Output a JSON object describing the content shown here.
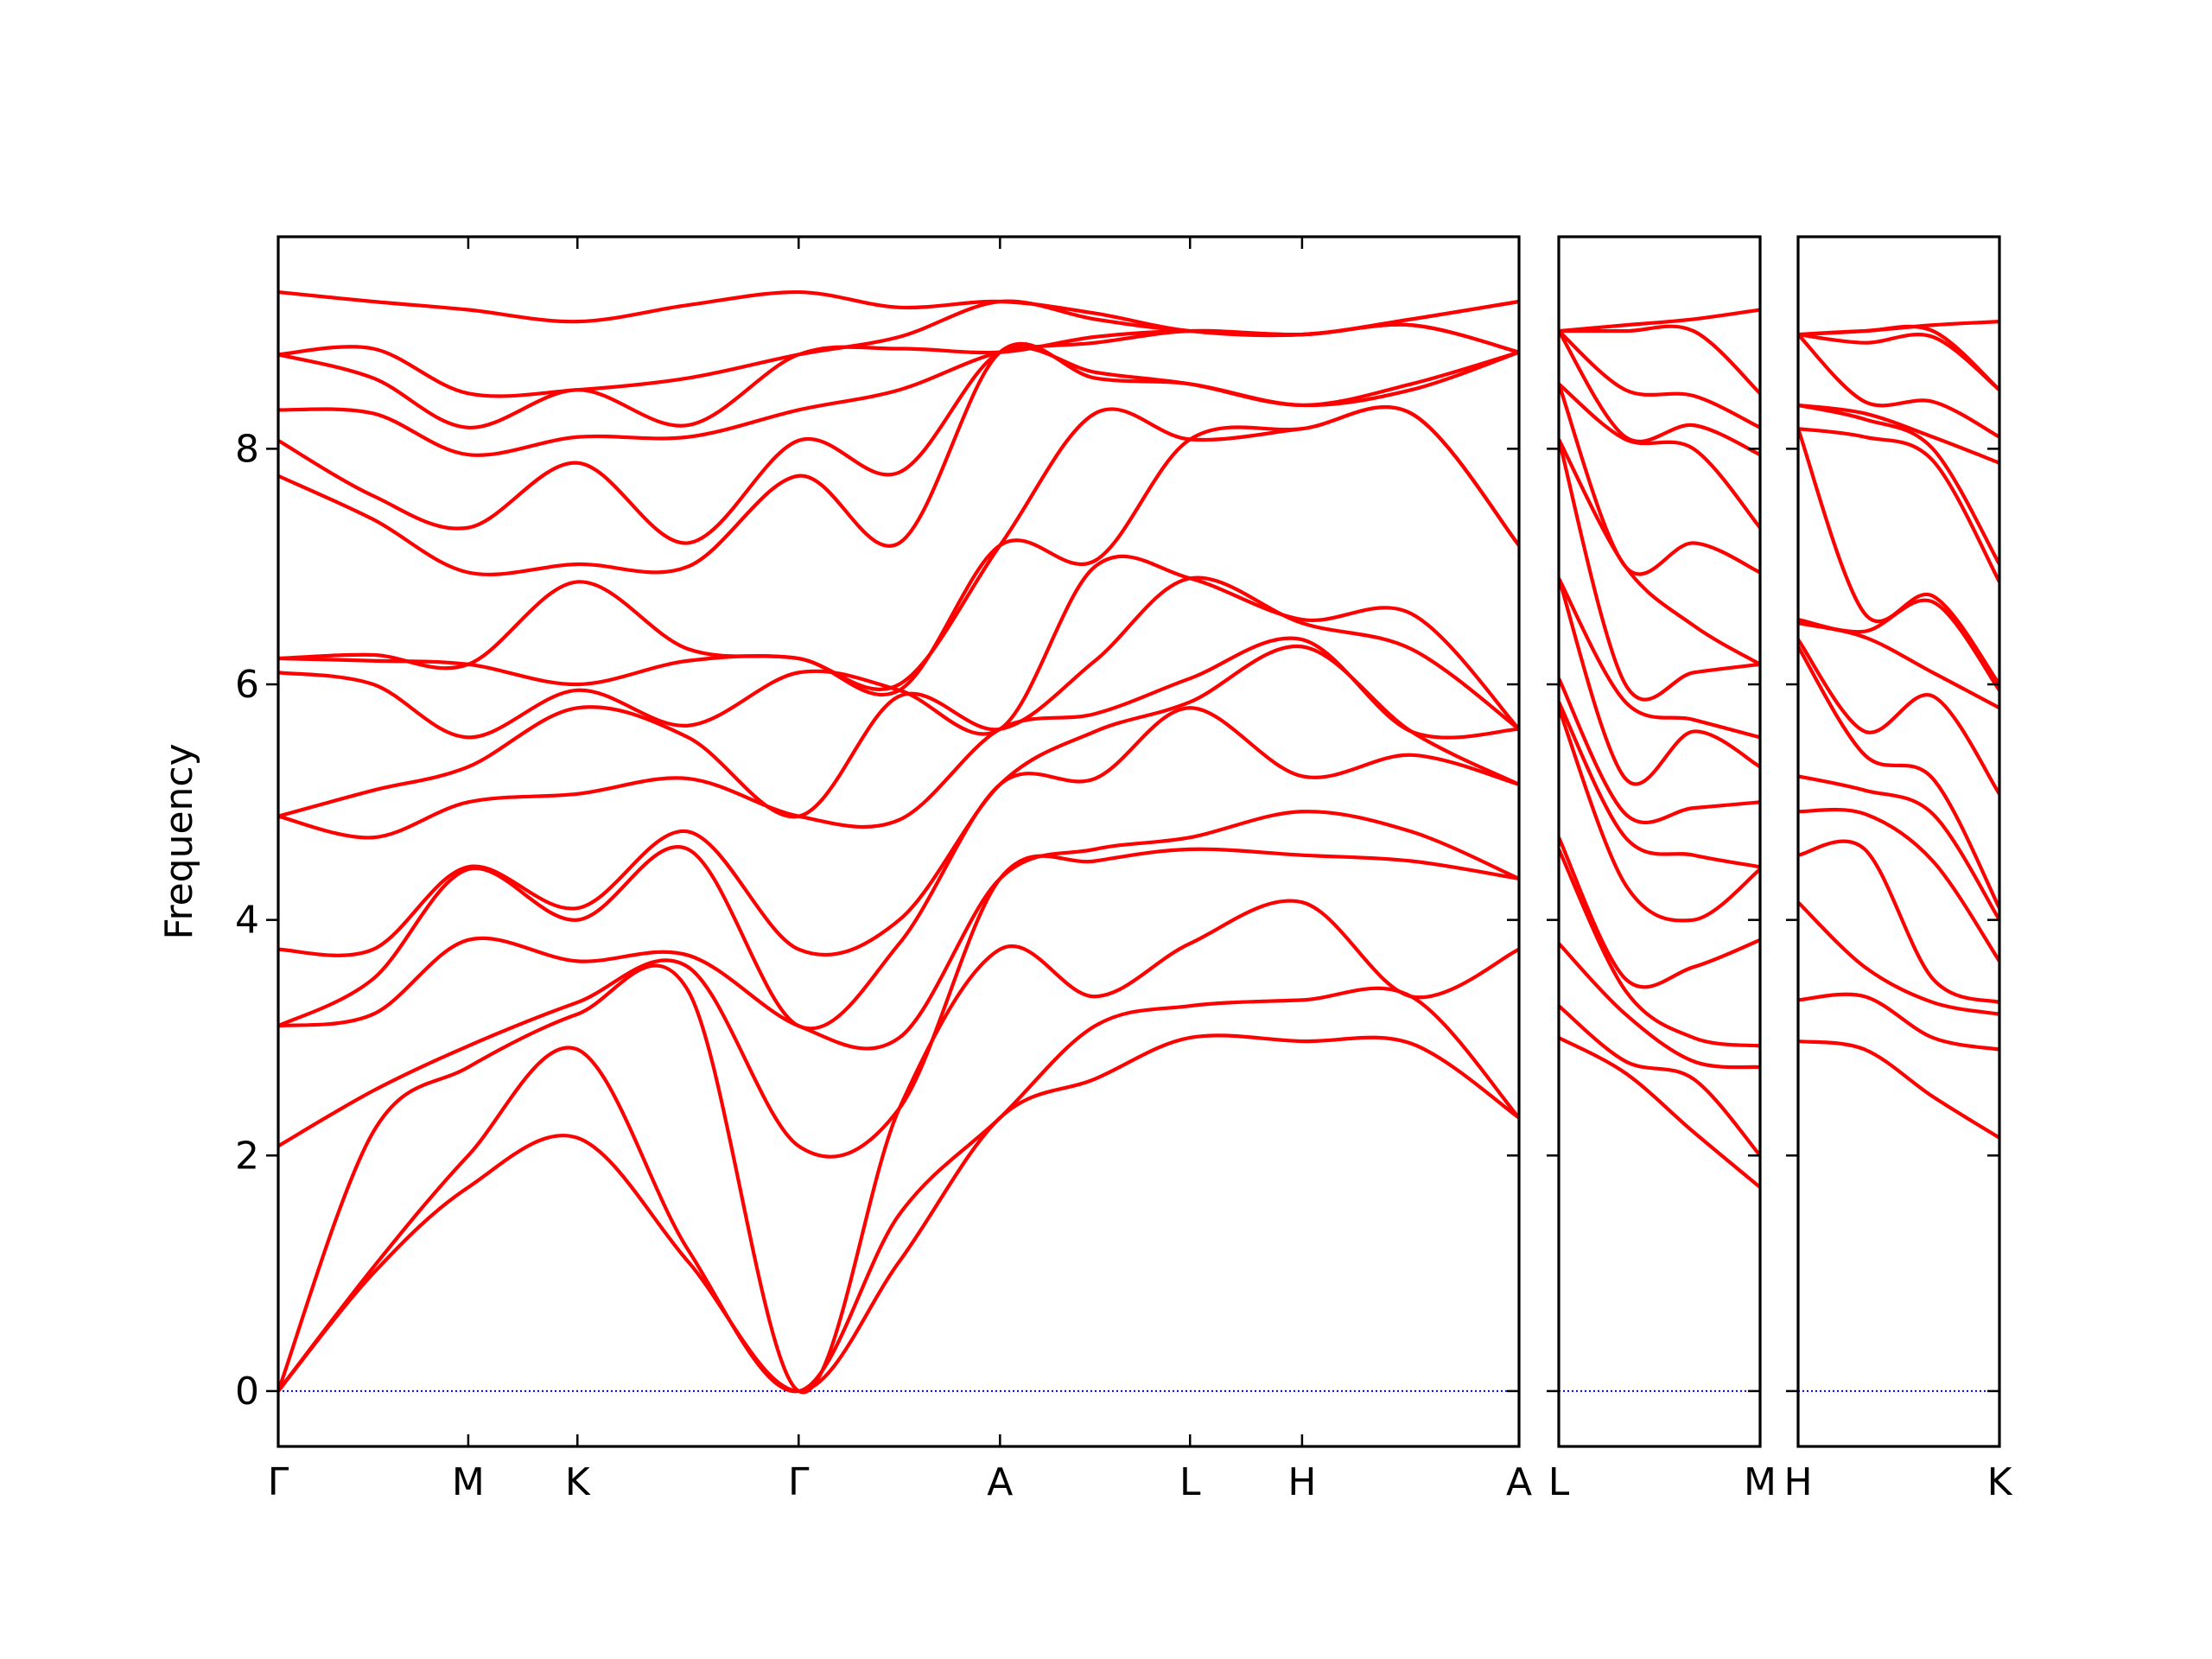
{
  "chart_data": [
    {
      "type": "line",
      "ylabel": "Frequency",
      "ylim": [
        -0.47,
        9.8
      ],
      "yticks": [
        0,
        2,
        4,
        6,
        8
      ],
      "xlim": [
        0,
        0.875
      ],
      "xticks": [
        {
          "value": 0,
          "label": "Γ"
        },
        {
          "value": 0.134,
          "label": "M"
        },
        {
          "value": 0.211,
          "label": "K"
        },
        {
          "value": 0.367,
          "label": "Γ"
        },
        {
          "value": 0.509,
          "label": "A"
        },
        {
          "value": 0.643,
          "label": "L"
        },
        {
          "value": 0.722,
          "label": "H"
        },
        {
          "value": 0.875,
          "label": "A"
        }
      ],
      "x": [
        0,
        0.067,
        0.134,
        0.211,
        0.289,
        0.367,
        0.438,
        0.509,
        0.576,
        0.643,
        0.722,
        0.799,
        0.875
      ],
      "series": [
        {
          "color": "#0000ff",
          "linestyle": "dotted",
          "values": [
            0,
            0,
            0,
            0,
            0,
            0,
            0,
            0,
            0,
            0,
            0,
            0,
            0
          ]
        },
        {
          "color": "#ff0000",
          "values": [
            0,
            1.0,
            1.73,
            2.15,
            1.1,
            0,
            1.1,
            2.32,
            2.65,
            3.0,
            2.97,
            2.95,
            2.32
          ]
        },
        {
          "color": "#ff0000",
          "values": [
            0,
            1.05,
            2.0,
            2.9,
            1.2,
            0,
            1.5,
            2.32,
            3.1,
            3.27,
            3.32,
            3.35,
            2.32
          ]
        },
        {
          "color": "#ff0000",
          "values": [
            0,
            2.2,
            2.75,
            3.2,
            3.4,
            0,
            2.4,
            3.75,
            3.35,
            3.8,
            4.15,
            3.35,
            3.75
          ]
        },
        {
          "color": "#ff0000",
          "values": [
            2.08,
            2.55,
            2.93,
            3.3,
            3.6,
            2.08,
            2.4,
            4.35,
            4.5,
            4.6,
            4.55,
            4.5,
            4.35
          ]
        },
        {
          "color": "#ff0000",
          "values": [
            3.1,
            3.2,
            3.83,
            3.65,
            3.7,
            3.1,
            3.0,
            4.35,
            4.6,
            4.7,
            4.92,
            4.75,
            4.35
          ]
        },
        {
          "color": "#ff0000",
          "values": [
            3.1,
            3.5,
            4.43,
            4.0,
            4.6,
            3.1,
            3.8,
            5.15,
            5.2,
            5.8,
            5.22,
            5.4,
            5.15
          ]
        },
        {
          "color": "#ff0000",
          "values": [
            3.75,
            3.75,
            4.45,
            4.1,
            4.75,
            3.75,
            4.0,
            5.15,
            5.6,
            5.85,
            6.32,
            5.6,
            5.15
          ]
        },
        {
          "color": "#ff0000",
          "values": [
            4.88,
            4.7,
            5.0,
            5.07,
            5.2,
            4.88,
            4.85,
            5.62,
            5.75,
            6.05,
            6.38,
            5.6,
            5.62
          ]
        },
        {
          "color": "#ff0000",
          "values": [
            4.88,
            5.1,
            5.3,
            5.8,
            5.55,
            4.88,
            5.9,
            5.62,
            6.2,
            6.9,
            6.52,
            6.3,
            5.62
          ]
        },
        {
          "color": "#ff0000",
          "values": [
            6.1,
            6.0,
            5.55,
            5.95,
            5.65,
            6.1,
            5.95,
            5.62,
            7.0,
            6.9,
            6.55,
            6.6,
            5.62
          ]
        },
        {
          "color": "#ff0000",
          "values": [
            6.22,
            6.2,
            6.17,
            6.0,
            6.2,
            6.22,
            5.95,
            7.18,
            7.05,
            8.08,
            8.17,
            8.3,
            7.18
          ]
        },
        {
          "color": "#ff0000",
          "values": [
            6.22,
            6.25,
            6.17,
            6.87,
            6.3,
            6.22,
            6.0,
            7.18,
            8.3,
            8.08,
            8.17,
            8.3,
            7.18
          ]
        },
        {
          "color": "#ff0000",
          "values": [
            7.77,
            7.4,
            6.95,
            7.02,
            7.0,
            7.77,
            7.2,
            8.82,
            8.6,
            8.55,
            8.37,
            8.5,
            8.82
          ]
        },
        {
          "color": "#ff0000",
          "values": [
            8.07,
            7.6,
            7.33,
            7.88,
            7.2,
            8.07,
            7.8,
            8.82,
            8.65,
            8.55,
            8.37,
            8.55,
            8.82
          ]
        },
        {
          "color": "#ff0000",
          "values": [
            8.33,
            8.3,
            7.95,
            8.1,
            8.1,
            8.33,
            8.5,
            8.82,
            8.9,
            9.0,
            8.97,
            9.05,
            8.82
          ]
        },
        {
          "color": "#ff0000",
          "values": [
            8.8,
            8.6,
            8.18,
            8.5,
            8.2,
            8.8,
            8.85,
            8.82,
            8.95,
            9.0,
            8.97,
            9.05,
            8.82
          ]
        },
        {
          "color": "#ff0000",
          "values": [
            8.8,
            8.85,
            8.47,
            8.5,
            8.6,
            8.8,
            8.95,
            9.25,
            9.1,
            9.0,
            8.97,
            9.1,
            9.25
          ]
        },
        {
          "color": "#ff0000",
          "values": [
            9.33,
            9.25,
            9.18,
            9.08,
            9.22,
            9.33,
            9.2,
            9.25,
            9.15,
            9.0,
            8.97,
            9.1,
            9.25
          ]
        }
      ]
    },
    {
      "type": "line",
      "xlim": [
        0,
        0.142
      ],
      "xticks": [
        {
          "value": 0,
          "label": "L"
        },
        {
          "value": 0.142,
          "label": "M"
        }
      ],
      "x": [
        0,
        0.047,
        0.095,
        0.142
      ],
      "series": [
        {
          "color": "#0000ff",
          "linestyle": "dotted",
          "values": [
            0,
            0,
            0,
            0
          ]
        },
        {
          "color": "#ff0000",
          "values": [
            3.0,
            2.7,
            2.2,
            1.73
          ]
        },
        {
          "color": "#ff0000",
          "values": [
            3.27,
            2.8,
            2.65,
            2.0
          ]
        },
        {
          "color": "#ff0000",
          "values": [
            3.8,
            3.2,
            2.8,
            2.75
          ]
        },
        {
          "color": "#ff0000",
          "values": [
            4.6,
            3.4,
            3.0,
            2.93
          ]
        },
        {
          "color": "#ff0000",
          "values": [
            4.7,
            3.5,
            3.6,
            3.83
          ]
        },
        {
          "color": "#ff0000",
          "values": [
            5.8,
            4.3,
            4.0,
            4.43
          ]
        },
        {
          "color": "#ff0000",
          "values": [
            5.85,
            4.7,
            4.55,
            4.45
          ]
        },
        {
          "color": "#ff0000",
          "values": [
            6.05,
            4.9,
            4.95,
            5.0
          ]
        },
        {
          "color": "#ff0000",
          "values": [
            6.9,
            5.2,
            5.6,
            5.3
          ]
        },
        {
          "color": "#ff0000",
          "values": [
            6.9,
            5.85,
            5.7,
            5.55
          ]
        },
        {
          "color": "#ff0000",
          "values": [
            8.08,
            6.0,
            6.1,
            6.17
          ]
        },
        {
          "color": "#ff0000",
          "values": [
            8.08,
            7.0,
            6.5,
            6.17
          ]
        },
        {
          "color": "#ff0000",
          "values": [
            8.55,
            7.0,
            7.2,
            6.95
          ]
        },
        {
          "color": "#ff0000",
          "values": [
            8.55,
            8.08,
            8.0,
            7.33
          ]
        },
        {
          "color": "#ff0000",
          "values": [
            9.0,
            8.1,
            8.2,
            7.95
          ]
        },
        {
          "color": "#ff0000",
          "values": [
            9.0,
            8.5,
            8.45,
            8.18
          ]
        },
        {
          "color": "#ff0000",
          "values": [
            9.0,
            9.0,
            9.0,
            8.47
          ]
        },
        {
          "color": "#ff0000",
          "values": [
            9.0,
            9.05,
            9.1,
            9.18
          ]
        }
      ]
    },
    {
      "type": "line",
      "xlim": [
        0,
        0.142
      ],
      "xticks": [
        {
          "value": 0,
          "label": "H"
        },
        {
          "value": 0.142,
          "label": "K"
        }
      ],
      "x": [
        0,
        0.047,
        0.095,
        0.142
      ],
      "series": [
        {
          "color": "#0000ff",
          "linestyle": "dotted",
          "values": [
            0,
            0,
            0,
            0
          ]
        },
        {
          "color": "#ff0000",
          "values": [
            2.97,
            2.9,
            2.5,
            2.15
          ]
        },
        {
          "color": "#ff0000",
          "values": [
            3.32,
            3.35,
            3.0,
            2.9
          ]
        },
        {
          "color": "#ff0000",
          "values": [
            4.15,
            3.6,
            3.3,
            3.2
          ]
        },
        {
          "color": "#ff0000",
          "values": [
            4.55,
            4.6,
            3.5,
            3.3
          ]
        },
        {
          "color": "#ff0000",
          "values": [
            4.92,
            4.9,
            4.5,
            3.65
          ]
        },
        {
          "color": "#ff0000",
          "values": [
            5.22,
            5.1,
            4.9,
            4.0
          ]
        },
        {
          "color": "#ff0000",
          "values": [
            6.32,
            5.4,
            5.2,
            4.1
          ]
        },
        {
          "color": "#ff0000",
          "values": [
            6.38,
            5.6,
            5.9,
            5.07
          ]
        },
        {
          "color": "#ff0000",
          "values": [
            6.52,
            6.4,
            6.1,
            5.8
          ]
        },
        {
          "color": "#ff0000",
          "values": [
            6.55,
            6.45,
            6.7,
            5.95
          ]
        },
        {
          "color": "#ff0000",
          "values": [
            8.17,
            6.6,
            6.75,
            6.0
          ]
        },
        {
          "color": "#ff0000",
          "values": [
            8.17,
            8.1,
            7.9,
            6.87
          ]
        },
        {
          "color": "#ff0000",
          "values": [
            8.37,
            8.25,
            8.0,
            7.02
          ]
        },
        {
          "color": "#ff0000",
          "values": [
            8.37,
            8.3,
            8.1,
            7.88
          ]
        },
        {
          "color": "#ff0000",
          "values": [
            8.97,
            8.4,
            8.4,
            8.1
          ]
        },
        {
          "color": "#ff0000",
          "values": [
            8.97,
            8.9,
            8.95,
            8.5
          ]
        },
        {
          "color": "#ff0000",
          "values": [
            8.97,
            9.0,
            9.0,
            8.5
          ]
        },
        {
          "color": "#ff0000",
          "values": [
            8.97,
            9.0,
            9.05,
            9.08
          ]
        }
      ]
    }
  ]
}
